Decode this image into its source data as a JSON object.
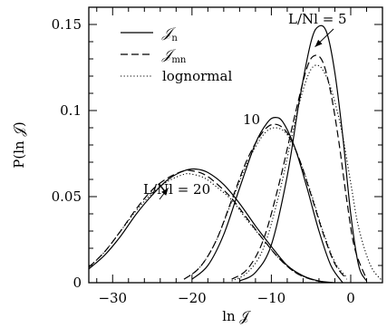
{
  "chart_data": {
    "type": "line",
    "xlabel": "ln 𝒥",
    "ylabel": "P(ln 𝒥)",
    "xlim": [
      -33,
      4
    ],
    "ylim": [
      0,
      0.16
    ],
    "x_ticks": [
      -30,
      -20,
      -10,
      0
    ],
    "x_tick_labels": [
      "−30",
      "−20",
      "−10",
      "0"
    ],
    "x_minor_step": 2,
    "y_ticks": [
      0,
      0.05,
      0.1,
      0.15
    ],
    "y_tick_labels": [
      "0",
      "0.05",
      "0.1",
      "0.15"
    ],
    "y_minor_step": 0.01,
    "grid": false,
    "legend": {
      "placement": "top-left",
      "entries": [
        {
          "symbol": "𝒥",
          "subscript": "n",
          "style": "solid"
        },
        {
          "symbol": "𝒥",
          "subscript": "mn",
          "style": "dashed"
        },
        {
          "text": "lognormal",
          "style": "dotted"
        }
      ]
    },
    "annotations": [
      {
        "text": "L/Nl = 5",
        "target": [
          -4.5,
          0.137
        ]
      },
      {
        "text": "10",
        "target": null
      },
      {
        "text": "L/Nl = 20",
        "target": [
          -23,
          0.055
        ]
      }
    ],
    "curve_families": [
      {
        "label": "L/Nl = 20",
        "series": [
          {
            "style": "solid",
            "x": [
              -33,
              -31,
              -29,
              -27,
              -25,
              -23,
              -21,
              -19.5,
              -18,
              -16,
              -14,
              -12,
              -10,
              -8,
              -6,
              -4,
              -2
            ],
            "y": [
              0.008,
              0.016,
              0.027,
              0.04,
              0.051,
              0.06,
              0.065,
              0.066,
              0.064,
              0.057,
              0.046,
              0.033,
              0.021,
              0.01,
              0.004,
              0.001,
              0
            ]
          },
          {
            "style": "dashed",
            "x": [
              -33,
              -31,
              -29,
              -27,
              -25,
              -23,
              -21,
              -20,
              -18.5,
              -17,
              -15,
              -13,
              -11,
              -9,
              -7,
              -5,
              -3
            ],
            "y": [
              0.009,
              0.018,
              0.03,
              0.043,
              0.054,
              0.061,
              0.065,
              0.065,
              0.063,
              0.058,
              0.049,
              0.037,
              0.025,
              0.014,
              0.006,
              0.002,
              0
            ]
          },
          {
            "style": "dotted",
            "x": [
              -33,
              -31,
              -29,
              -27,
              -25,
              -23,
              -21,
              -20,
              -18.5,
              -17,
              -15,
              -13,
              -11,
              -9,
              -7,
              -5,
              -3
            ],
            "y": [
              0.009,
              0.018,
              0.03,
              0.042,
              0.052,
              0.059,
              0.063,
              0.063,
              0.061,
              0.056,
              0.048,
              0.036,
              0.025,
              0.014,
              0.006,
              0.002,
              0
            ]
          }
        ]
      },
      {
        "label": "10",
        "series": [
          {
            "style": "solid",
            "x": [
              -20,
              -18,
              -16,
              -14,
              -12,
              -10.5,
              -9.5,
              -8.5,
              -7,
              -5.5,
              -4,
              -2.5,
              -1
            ],
            "y": [
              0.002,
              0.01,
              0.028,
              0.055,
              0.081,
              0.093,
              0.096,
              0.093,
              0.078,
              0.055,
              0.03,
              0.01,
              0
            ]
          },
          {
            "style": "dashed",
            "x": [
              -21,
              -19,
              -17,
              -15,
              -13,
              -11,
              -9.5,
              -8,
              -6.5,
              -5,
              -3.5,
              -2,
              -0.5
            ],
            "y": [
              0.002,
              0.009,
              0.024,
              0.048,
              0.072,
              0.088,
              0.092,
              0.087,
              0.072,
              0.051,
              0.029,
              0.011,
              0.002
            ]
          },
          {
            "style": "dotted",
            "x": [
              -21,
              -19,
              -17,
              -15,
              -13,
              -11,
              -9.5,
              -8,
              -6.5,
              -5,
              -3.5,
              -2,
              -0.5
            ],
            "y": [
              0.002,
              0.009,
              0.024,
              0.047,
              0.07,
              0.086,
              0.09,
              0.086,
              0.072,
              0.052,
              0.03,
              0.012,
              0.003
            ]
          }
        ]
      },
      {
        "label": "L/Nl = 5",
        "series": [
          {
            "style": "solid",
            "x": [
              -14,
              -12,
              -10,
              -8,
              -6.5,
              -5,
              -4,
              -3,
              -2,
              -1,
              0,
              1,
              2
            ],
            "y": [
              0.001,
              0.006,
              0.022,
              0.062,
              0.105,
              0.14,
              0.149,
              0.145,
              0.122,
              0.085,
              0.04,
              0.01,
              0.001
            ]
          },
          {
            "style": "dashed",
            "x": [
              -15,
              -13,
              -11,
              -9,
              -7,
              -5.5,
              -4.5,
              -3.5,
              -2.5,
              -1.5,
              -0.5,
              0.5,
              2
            ],
            "y": [
              0.002,
              0.008,
              0.025,
              0.058,
              0.098,
              0.125,
              0.132,
              0.128,
              0.11,
              0.082,
              0.048,
              0.02,
              0.002
            ]
          },
          {
            "style": "dotted",
            "x": [
              -15,
              -13,
              -11,
              -9,
              -7,
              -6,
              -5,
              -4,
              -3,
              -2,
              -1,
              0,
              1,
              2.5,
              4
            ],
            "y": [
              0.001,
              0.006,
              0.02,
              0.052,
              0.094,
              0.112,
              0.124,
              0.126,
              0.119,
              0.105,
              0.085,
              0.058,
              0.032,
              0.01,
              0.001
            ]
          }
        ]
      }
    ]
  }
}
